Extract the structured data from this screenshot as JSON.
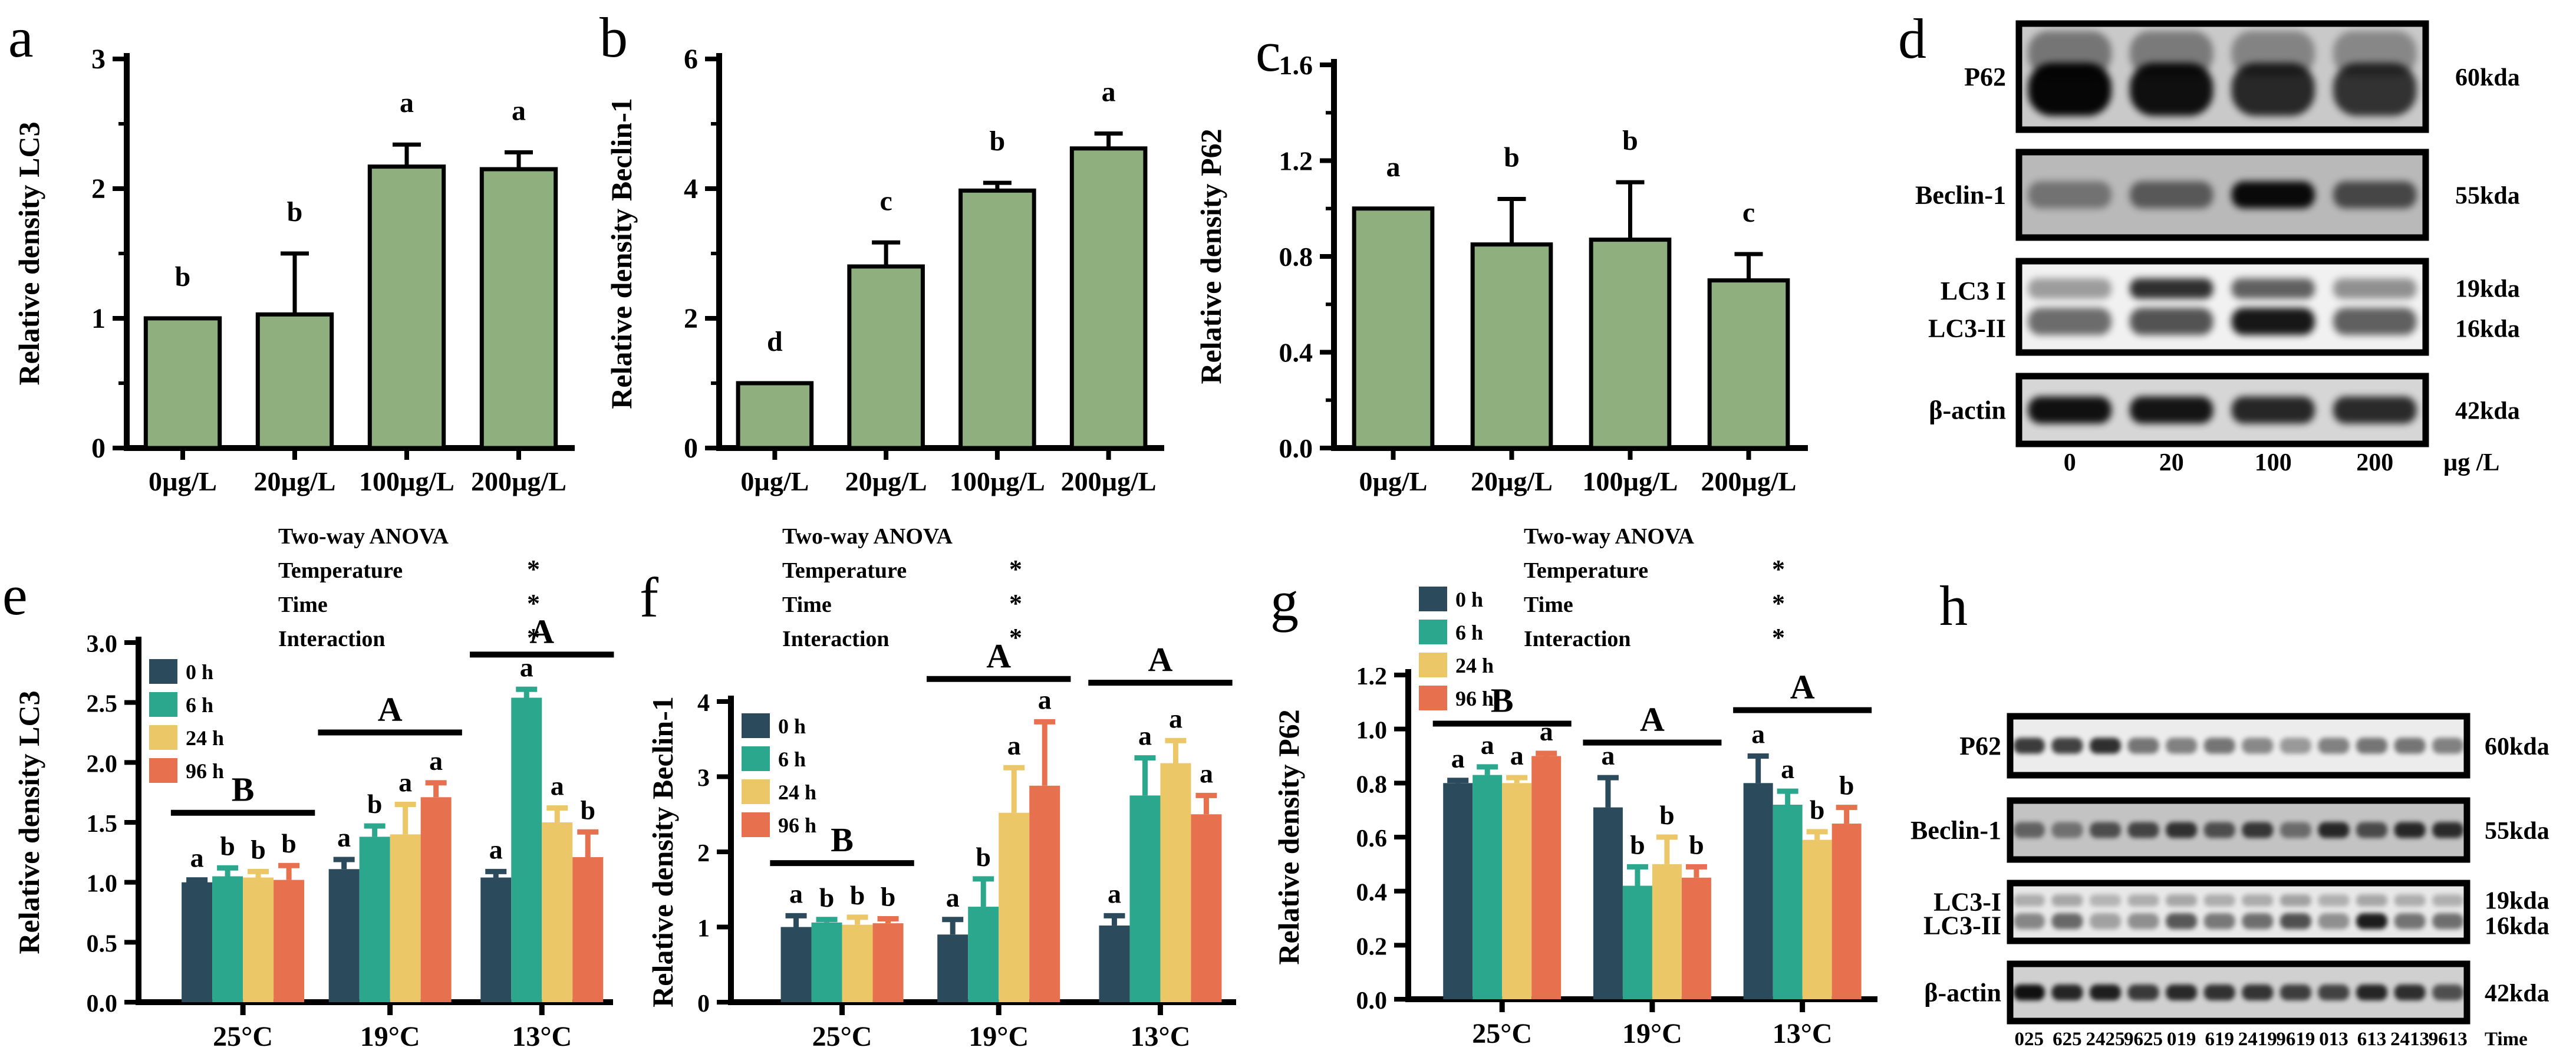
{
  "figure": {
    "background": "#ffffff",
    "panel_order": [
      "a",
      "b",
      "c",
      "d",
      "e",
      "f",
      "g",
      "h"
    ]
  },
  "chart_data": [
    {
      "id": "a",
      "type": "bar",
      "panel_label": "a",
      "ylabel": "Relative density LC3",
      "ylim": [
        0,
        3
      ],
      "yticks": [
        "0",
        "1",
        "2",
        "3"
      ],
      "grid": false,
      "legend_position": "none",
      "categories": [
        "0µg/L",
        "20µg/L",
        "100µg/L",
        "200µg/L"
      ],
      "values": [
        1.0,
        1.03,
        2.17,
        2.15
      ],
      "errors": [
        0,
        0.47,
        0.17,
        0.13
      ],
      "letters": [
        "b",
        "b",
        "a",
        "a"
      ],
      "bar_color": "#8FB07E",
      "bar_stroke": "#000000"
    },
    {
      "id": "b",
      "type": "bar",
      "panel_label": "b",
      "ylabel": "Relative density Beclin-1",
      "ylim": [
        0,
        6
      ],
      "yticks": [
        "0",
        "2",
        "4",
        "6"
      ],
      "grid": false,
      "legend_position": "none",
      "categories": [
        "0µg/L",
        "20µg/L",
        "100µg/L",
        "200µg/L"
      ],
      "values": [
        1.0,
        2.8,
        3.97,
        4.62
      ],
      "errors": [
        0,
        0.37,
        0.12,
        0.23
      ],
      "letters": [
        "d",
        "c",
        "b",
        "a"
      ],
      "bar_color": "#8FB07E",
      "bar_stroke": "#000000"
    },
    {
      "id": "c",
      "type": "bar",
      "panel_label": "c",
      "ylabel": "Relative density P62",
      "ylim": [
        0,
        1.6
      ],
      "yticks": [
        "0.0",
        "0.4",
        "0.8",
        "1.2",
        "1.6"
      ],
      "grid": false,
      "legend_position": "none",
      "categories": [
        "0µg/L",
        "20µg/L",
        "100µg/L",
        "200µg/L"
      ],
      "values": [
        1.0,
        0.85,
        0.87,
        0.7
      ],
      "errors": [
        0,
        0.19,
        0.24,
        0.11
      ],
      "letters": [
        "a",
        "b",
        "b",
        "c"
      ],
      "bar_color": "#8FB07E",
      "bar_stroke": "#000000"
    },
    {
      "id": "d",
      "type": "blot",
      "panel_label": "d",
      "lane_labels": [
        "0",
        "20",
        "100",
        "200"
      ],
      "unit_label": "µg /L",
      "rows": [
        {
          "label": "P62",
          "kda": "60kda",
          "style": "heavy",
          "bg": "#c9c9c9",
          "intensity": [
            0.97,
            0.92,
            0.8,
            0.75
          ]
        },
        {
          "label": "Beclin-1",
          "kda": "55kda",
          "style": "band",
          "bg": "#b9b9b9",
          "intensity": [
            0.38,
            0.52,
            0.95,
            0.62
          ]
        },
        {
          "label": "LC3 I",
          "label2": "LC3-II",
          "kda": "19kda",
          "kda2": "16kda",
          "style": "double",
          "bg": "#f1f1f1",
          "intensity_top": [
            0.35,
            0.8,
            0.6,
            0.4
          ],
          "intensity_bottom": [
            0.55,
            0.65,
            0.9,
            0.6
          ]
        },
        {
          "label": "β-actin",
          "kda": "42kda",
          "style": "band",
          "bg": "#d6d6d6",
          "intensity": [
            0.92,
            0.9,
            0.82,
            0.8
          ]
        }
      ]
    },
    {
      "id": "e",
      "type": "grouped_bar",
      "panel_label": "e",
      "ylabel": "Relative density LC3",
      "ylim": [
        0,
        3
      ],
      "yticks": [
        "0.0",
        "0.5",
        "1.0",
        "1.5",
        "2.0",
        "2.5",
        "3.0"
      ],
      "grid": false,
      "legend_position": "top-left",
      "categories": [
        "25°C",
        "19°C",
        "13°C"
      ],
      "series": [
        {
          "name": "0 h",
          "color": "#2B4A5B",
          "values": [
            1.0,
            1.11,
            1.04
          ],
          "errors": [
            0.02,
            0.08,
            0.05
          ],
          "letters": [
            "a",
            "a",
            "a"
          ]
        },
        {
          "name": "6 h",
          "color": "#2AA78C",
          "values": [
            1.05,
            1.38,
            2.54
          ],
          "errors": [
            0.07,
            0.09,
            0.07
          ],
          "letters": [
            "b",
            "b",
            "a"
          ]
        },
        {
          "name": "24 h",
          "color": "#EBC768",
          "values": [
            1.04,
            1.4,
            1.5
          ],
          "errors": [
            0.05,
            0.25,
            0.12
          ],
          "letters": [
            "b",
            "a",
            "a"
          ]
        },
        {
          "name": "96 h",
          "color": "#E7714F",
          "values": [
            1.02,
            1.71,
            1.21
          ],
          "errors": [
            0.12,
            0.12,
            0.21
          ],
          "letters": [
            "b",
            "a",
            "b"
          ]
        }
      ],
      "group_letters": [
        {
          "label": "B",
          "y": 1.58
        },
        {
          "label": "A",
          "y": 2.25
        },
        {
          "label": "A",
          "y": 2.9
        }
      ],
      "anova_title": "Two-way ANOVA",
      "anova_rows": [
        {
          "factor": "Temperature",
          "sig": "*"
        },
        {
          "factor": "Time",
          "sig": "*"
        },
        {
          "factor": "Interaction",
          "sig": "*"
        }
      ]
    },
    {
      "id": "f",
      "type": "grouped_bar",
      "panel_label": "f",
      "ylabel": "Relative density Beclin-1",
      "ylim": [
        0,
        4
      ],
      "yticks": [
        "0",
        "1",
        "2",
        "3",
        "4"
      ],
      "grid": false,
      "legend_position": "top-left",
      "categories": [
        "25°C",
        "19°C",
        "13°C"
      ],
      "series": [
        {
          "name": "0 h",
          "color": "#2B4A5B",
          "values": [
            1.0,
            0.9,
            1.02
          ],
          "errors": [
            0.15,
            0.2,
            0.13
          ],
          "letters": [
            "a",
            "a",
            "a"
          ]
        },
        {
          "name": "6 h",
          "color": "#2AA78C",
          "values": [
            1.06,
            1.27,
            2.75
          ],
          "errors": [
            0.04,
            0.37,
            0.5
          ],
          "letters": [
            "b",
            "b",
            "a"
          ]
        },
        {
          "name": "24 h",
          "color": "#EBC768",
          "values": [
            1.03,
            2.52,
            3.18
          ],
          "errors": [
            0.1,
            0.6,
            0.3
          ],
          "letters": [
            "b",
            "a",
            "a"
          ]
        },
        {
          "name": "96 h",
          "color": "#E7714F",
          "values": [
            1.05,
            2.88,
            2.5
          ],
          "errors": [
            0.06,
            0.85,
            0.25
          ],
          "letters": [
            "b",
            "a",
            "a"
          ]
        }
      ],
      "group_letters": [
        {
          "label": "B",
          "y": 1.85
        },
        {
          "label": "A",
          "y": 4.3
        },
        {
          "label": "A",
          "y": 4.25
        }
      ],
      "anova_title": "Two-way ANOVA",
      "anova_rows": [
        {
          "factor": "Temperature",
          "sig": "*"
        },
        {
          "factor": "Time",
          "sig": "*"
        },
        {
          "factor": "Interaction",
          "sig": "*"
        }
      ]
    },
    {
      "id": "g",
      "type": "grouped_bar",
      "panel_label": "g",
      "ylabel": "Relative density P62",
      "ylim": [
        0,
        1.2
      ],
      "yticks": [
        "0.0",
        "0.2",
        "0.4",
        "0.6",
        "0.8",
        "1.0",
        "1.2"
      ],
      "grid": false,
      "legend_position": "top-left",
      "categories": [
        "25°C",
        "19°C",
        "13°C"
      ],
      "series": [
        {
          "name": "0 h",
          "color": "#2B4A5B",
          "values": [
            0.8,
            0.71,
            0.8
          ],
          "errors": [
            0.01,
            0.11,
            0.1
          ],
          "letters": [
            "a",
            "a",
            "a"
          ]
        },
        {
          "name": "6 h",
          "color": "#2AA78C",
          "values": [
            0.83,
            0.42,
            0.72
          ],
          "errors": [
            0.03,
            0.07,
            0.05
          ],
          "letters": [
            "a",
            "b",
            "a"
          ]
        },
        {
          "name": "24 h",
          "color": "#EBC768",
          "values": [
            0.8,
            0.5,
            0.59
          ],
          "errors": [
            0.02,
            0.1,
            0.03
          ],
          "letters": [
            "a",
            "b",
            "b"
          ]
        },
        {
          "name": "96 h",
          "color": "#E7714F",
          "values": [
            0.9,
            0.45,
            0.65
          ],
          "errors": [
            0.01,
            0.04,
            0.06
          ],
          "letters": [
            "a",
            "b",
            "b"
          ]
        }
      ],
      "group_letters": [
        {
          "label": "B",
          "y": 1.02
        },
        {
          "label": "A",
          "y": 0.95
        },
        {
          "label": "A",
          "y": 1.07
        }
      ],
      "anova_title": "Two-way ANOVA",
      "anova_rows": [
        {
          "factor": "Temperature",
          "sig": "*"
        },
        {
          "factor": "Time",
          "sig": "*"
        },
        {
          "factor": "Interaction",
          "sig": "*"
        }
      ]
    },
    {
      "id": "h",
      "type": "blot",
      "panel_label": "h",
      "lane_labels": [
        "025",
        "625",
        "2425",
        "9625",
        "019",
        "619",
        "2419",
        "9619",
        "013",
        "613",
        "2413",
        "9613"
      ],
      "unit_label": "Time",
      "rows": [
        {
          "label": "P62",
          "kda": "60kda",
          "style": "band",
          "bg": "#ececec",
          "intensity": [
            0.75,
            0.72,
            0.8,
            0.5,
            0.45,
            0.5,
            0.42,
            0.35,
            0.45,
            0.5,
            0.5,
            0.45
          ]
        },
        {
          "label": "Beclin-1",
          "kda": "55kda",
          "style": "band",
          "bg": "#c3c3c3",
          "intensity": [
            0.5,
            0.42,
            0.6,
            0.65,
            0.75,
            0.6,
            0.72,
            0.45,
            0.8,
            0.62,
            0.8,
            0.78
          ]
        },
        {
          "label": "LC3-I",
          "label2": "LC3-II",
          "kda": "19kda",
          "kda2": "16kda",
          "style": "double",
          "bg": "#e8e8e8",
          "intensity_top": [
            0.25,
            0.28,
            0.22,
            0.25,
            0.28,
            0.25,
            0.26,
            0.3,
            0.24,
            0.28,
            0.25,
            0.24
          ],
          "intensity_bottom": [
            0.42,
            0.55,
            0.3,
            0.38,
            0.62,
            0.48,
            0.52,
            0.65,
            0.38,
            0.88,
            0.5,
            0.52
          ]
        },
        {
          "label": "β-actin",
          "kda": "42kda",
          "style": "band",
          "bg": "#d0d0d0",
          "intensity": [
            0.92,
            0.82,
            0.85,
            0.72,
            0.8,
            0.76,
            0.75,
            0.7,
            0.68,
            0.82,
            0.78,
            0.62
          ]
        }
      ]
    }
  ]
}
